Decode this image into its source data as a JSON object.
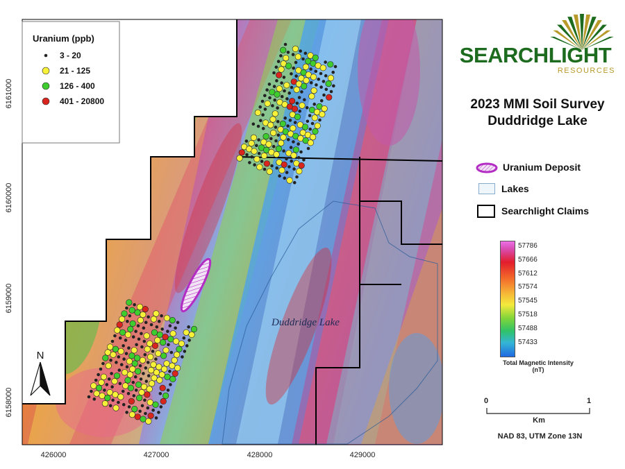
{
  "map": {
    "lake_label": "Duddridge Lake",
    "x_ticks": [
      "426000",
      "427000",
      "428000",
      "429000"
    ],
    "y_ticks": [
      "6161000",
      "6160000",
      "6159000",
      "6158000"
    ],
    "north_label": "N"
  },
  "uranium_legend": {
    "title": "Uranium (ppb)",
    "classes": [
      {
        "label": "3 - 20",
        "color": "#222222"
      },
      {
        "label": "21 - 125",
        "color": "#f7f13a"
      },
      {
        "label": "126 - 400",
        "color": "#3ecc2e"
      },
      {
        "label": "401 - 20800",
        "color": "#d8261e"
      }
    ]
  },
  "logo": {
    "name": "SEARCHLIGHT",
    "sub": "RESOURCES",
    "name_color": "#1d6b1f",
    "sub_color": "#b79a2a"
  },
  "title": {
    "line1": "2023 MMI Soil Survey",
    "line2": "Duddridge Lake"
  },
  "legend": {
    "deposit": "Uranium Deposit",
    "lakes": "Lakes",
    "claims": "Searchlight Claims",
    "deposit_color": "#b32cc4"
  },
  "colorbar": {
    "labels": [
      "57786",
      "57666",
      "57612",
      "57574",
      "57545",
      "57518",
      "57488",
      "57433"
    ],
    "caption1": "Total Magnetic Intensity",
    "caption2": "(nT)"
  },
  "scale": {
    "start": "0",
    "end": "1",
    "unit": "Km"
  },
  "projection": "NAD 83, UTM Zone 13N"
}
